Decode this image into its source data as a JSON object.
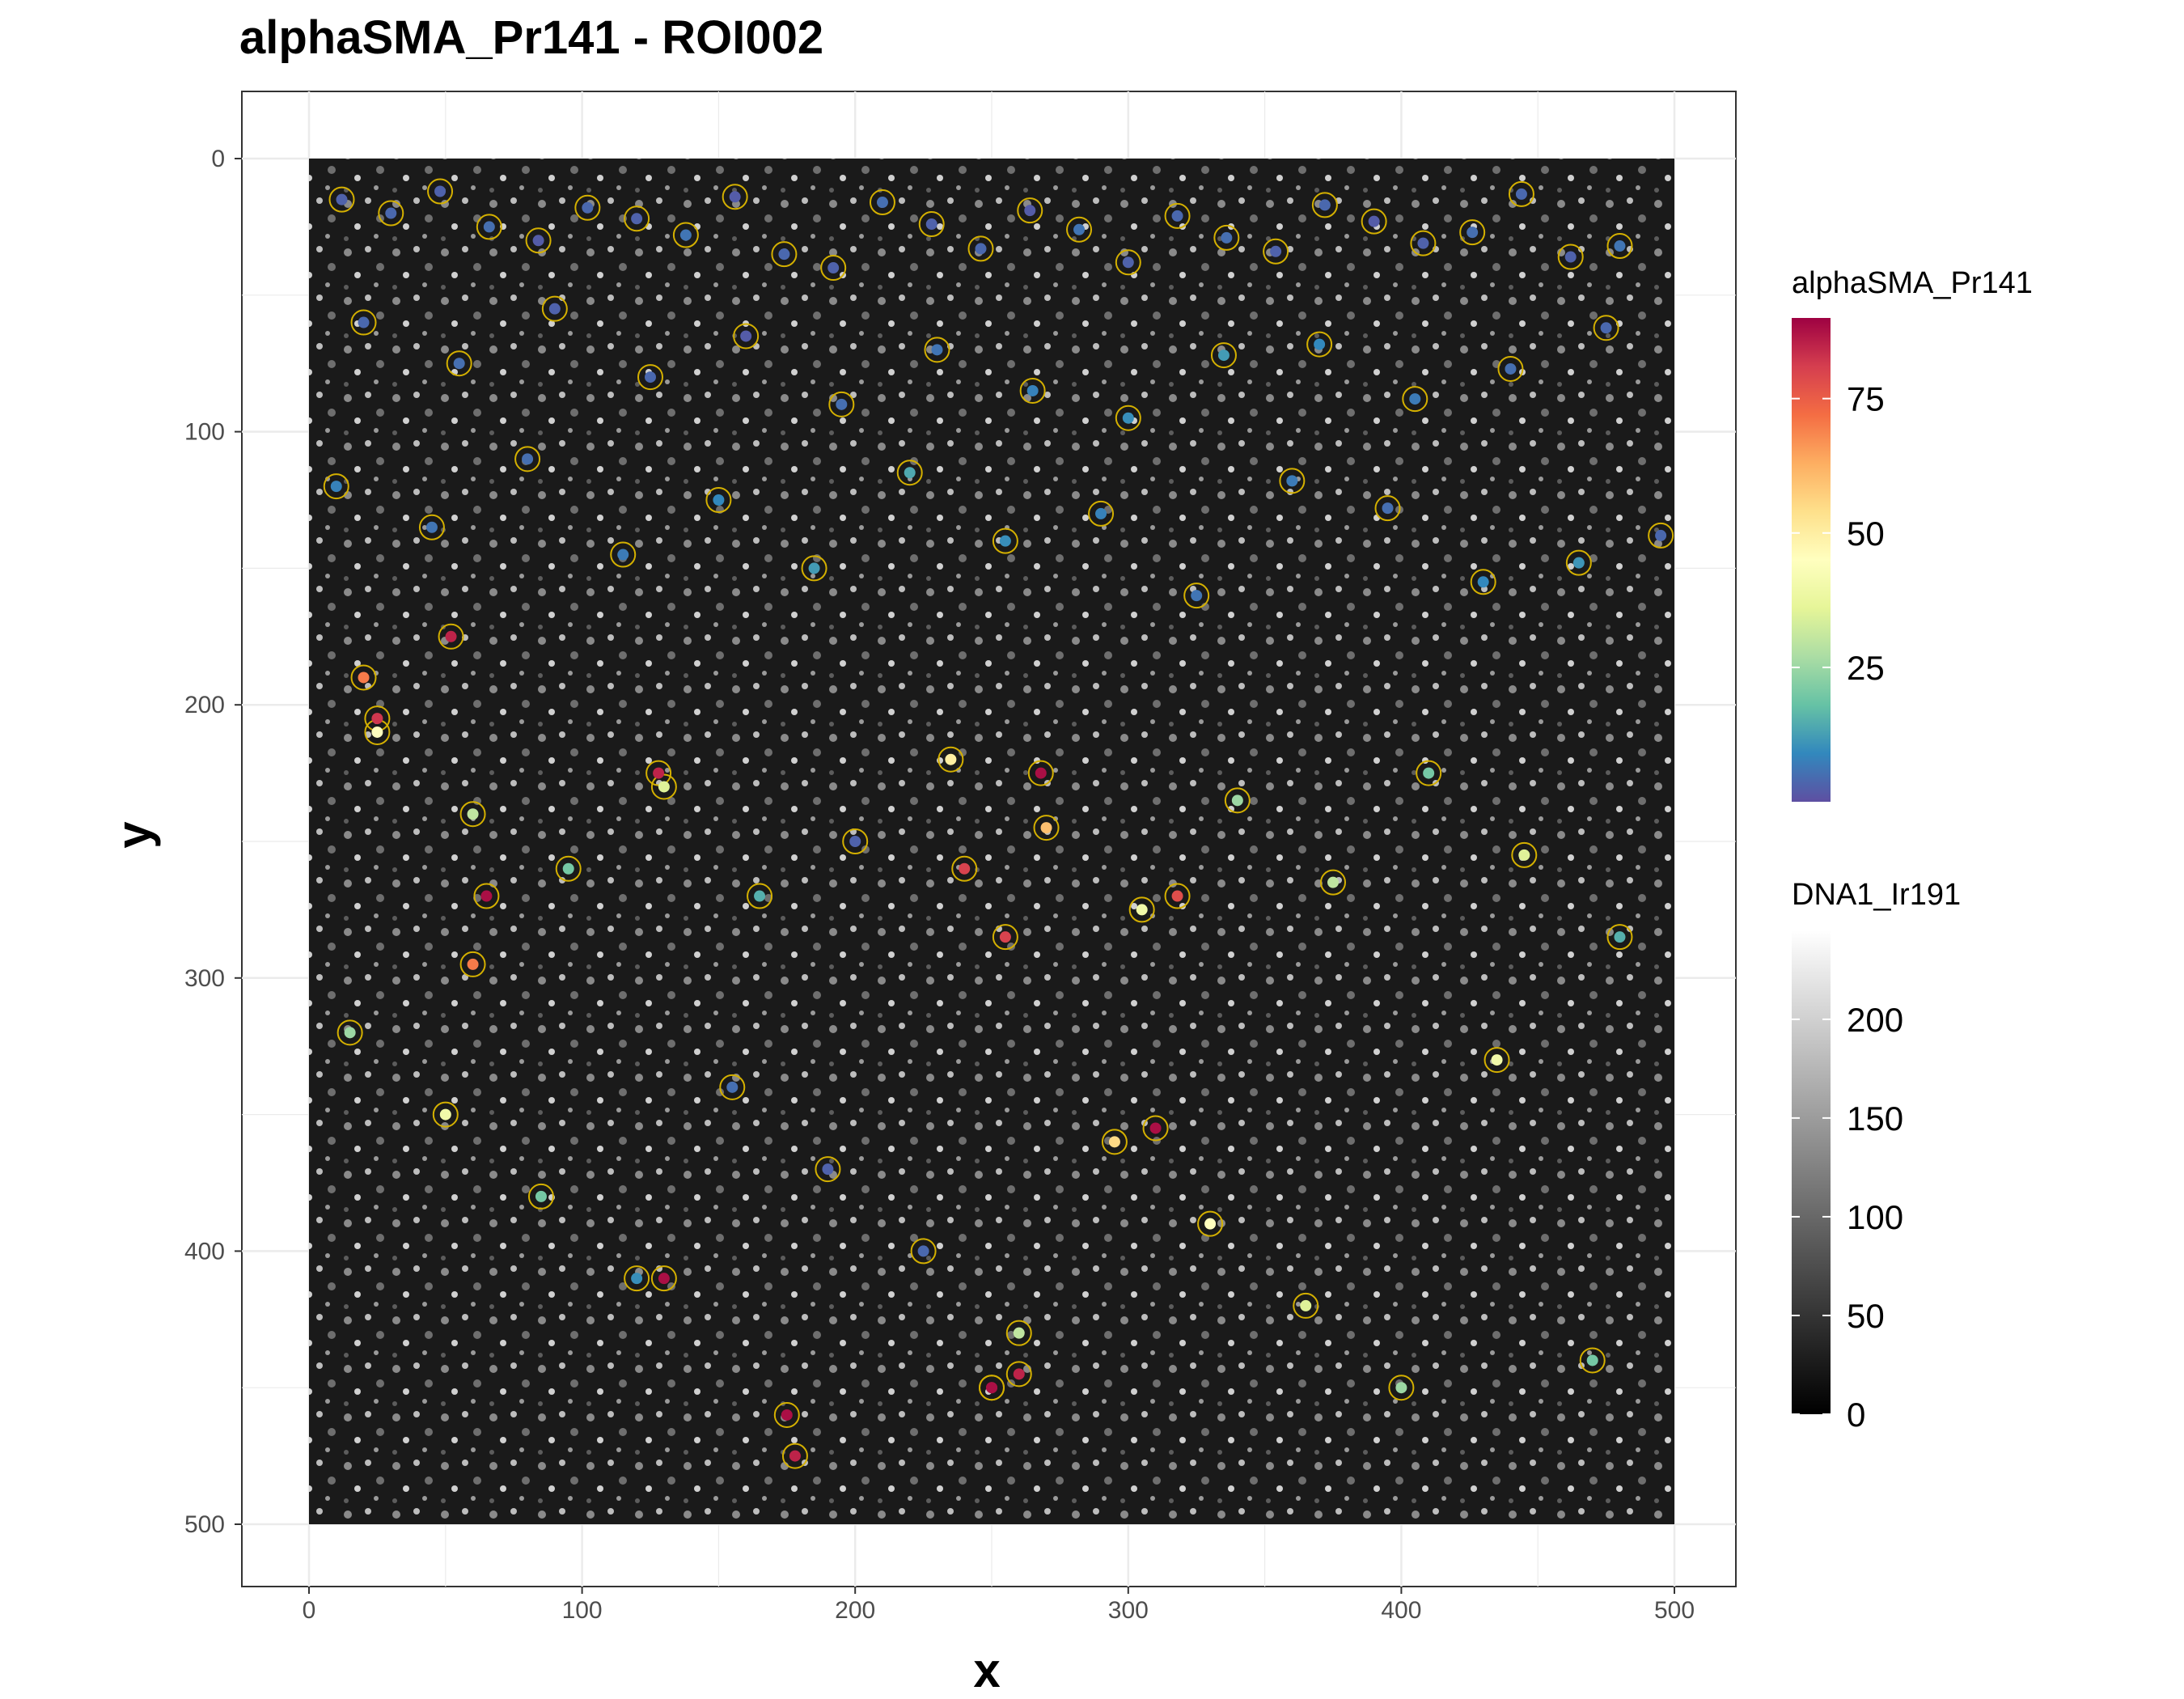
{
  "chart_data": {
    "type": "scatter",
    "title": "alphaSMA_Pr141 - ROI002",
    "xlabel": "x",
    "ylabel": "y",
    "xlim": [
      0,
      500
    ],
    "ylim": [
      500,
      0
    ],
    "x_ticks": [
      0,
      100,
      200,
      300,
      400,
      500
    ],
    "y_ticks": [
      0,
      100,
      200,
      300,
      400,
      500
    ],
    "y_reversed": true,
    "grid": true,
    "background_image": "DNA1_Ir191 grayscale nuclear stain with cell outlines",
    "cell_outline_color": "#d4b000",
    "color_legend": {
      "title": "alphaSMA_Pr141",
      "labels": [
        "75",
        "50",
        "25"
      ],
      "values": [
        75,
        50,
        25
      ],
      "range": [
        0,
        90
      ],
      "palette": [
        "#5e4fa2",
        "#3288bd",
        "#66c2a5",
        "#abdda4",
        "#e6f598",
        "#ffffbf",
        "#fee08b",
        "#fdae61",
        "#f46d43",
        "#d53e4f",
        "#9e0142"
      ]
    },
    "gray_legend": {
      "title": "DNA1_Ir191",
      "labels": [
        "200",
        "150",
        "100",
        "50",
        "0"
      ],
      "values": [
        200,
        150,
        100,
        50,
        0
      ],
      "range": [
        0,
        245
      ],
      "palette": [
        "#000000",
        "#ffffff"
      ]
    },
    "legend_position": "right",
    "series": [
      {
        "name": "cells",
        "description_values": "each point is a segmented cell centroid colored by mean alphaSMA_Pr141 intensity",
        "x": [
          12,
          30,
          48,
          66,
          84,
          102,
          120,
          138,
          156,
          174,
          192,
          210,
          228,
          246,
          264,
          282,
          300,
          318,
          336,
          354,
          372,
          390,
          408,
          426,
          444,
          462,
          480,
          20,
          55,
          90,
          125,
          160,
          195,
          230,
          265,
          300,
          335,
          370,
          405,
          440,
          475,
          10,
          45,
          80,
          115,
          150,
          185,
          220,
          255,
          290,
          325,
          360,
          395,
          430,
          465,
          495,
          25,
          60,
          95,
          130,
          165,
          200,
          235,
          270,
          305,
          340,
          375,
          410,
          445,
          480,
          15,
          50,
          85,
          120,
          155,
          190,
          225,
          260,
          295,
          330,
          365,
          400,
          435,
          470,
          20,
          52,
          65,
          25,
          130,
          240,
          250,
          255,
          310,
          318,
          60,
          128,
          175,
          178,
          250,
          260,
          268
        ],
        "y": [
          15,
          20,
          12,
          25,
          30,
          18,
          22,
          28,
          14,
          35,
          40,
          16,
          24,
          33,
          19,
          26,
          38,
          21,
          29,
          34,
          17,
          23,
          31,
          27,
          13,
          36,
          32,
          60,
          75,
          55,
          80,
          65,
          90,
          70,
          85,
          95,
          72,
          68,
          88,
          77,
          62,
          120,
          135,
          110,
          145,
          125,
          150,
          115,
          140,
          130,
          160,
          118,
          128,
          155,
          148,
          138,
          210,
          240,
          260,
          230,
          270,
          250,
          220,
          245,
          275,
          235,
          265,
          225,
          255,
          285,
          320,
          350,
          380,
          410,
          340,
          370,
          400,
          430,
          360,
          390,
          420,
          450,
          330,
          440,
          190,
          175,
          270,
          205,
          410,
          260,
          450,
          285,
          355,
          270,
          295,
          225,
          460,
          475,
          450,
          445,
          225
        ],
        "values": [
          3,
          4,
          3,
          5,
          2,
          4,
          3,
          6,
          2,
          4,
          3,
          5,
          3,
          4,
          2,
          6,
          3,
          4,
          5,
          3,
          4,
          2,
          3,
          5,
          4,
          3,
          6,
          4,
          5,
          3,
          4,
          2,
          5,
          6,
          8,
          10,
          12,
          9,
          7,
          5,
          4,
          8,
          6,
          5,
          7,
          9,
          12,
          14,
          10,
          8,
          6,
          7,
          5,
          9,
          11,
          4,
          45,
          30,
          20,
          35,
          15,
          3,
          50,
          60,
          40,
          25,
          30,
          20,
          35,
          15,
          25,
          40,
          20,
          10,
          5,
          3,
          4,
          30,
          55,
          45,
          35,
          25,
          40,
          20,
          70,
          85,
          88,
          82,
          88,
          80,
          85,
          80,
          88,
          78,
          70,
          85,
          88,
          85,
          88,
          85,
          88
        ]
      }
    ]
  }
}
